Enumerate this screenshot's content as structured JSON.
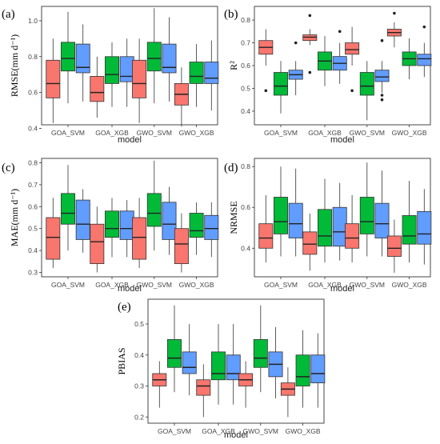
{
  "chart_data": [
    {
      "panel": "(a)",
      "type": "boxplot",
      "ylabel": "RMSE(mm d⁻¹)",
      "xlabel": "model",
      "ylim": [
        0.42,
        1.08
      ],
      "yticks": [
        0.4,
        0.6,
        0.8,
        1.0
      ],
      "ytick_labels": [
        "0.4",
        "0.6",
        "0.8",
        "1.0"
      ],
      "categories": [
        "GOA_SVM",
        "GOA_XGB",
        "GWO_SVM",
        "GWO_XGB"
      ],
      "groups": [
        [
          {
            "color": "#F8766D",
            "min": 0.43,
            "q1": 0.57,
            "med": 0.65,
            "q3": 0.78,
            "max": 0.9,
            "outliers": []
          },
          {
            "color": "#00BA38",
            "min": 0.54,
            "q1": 0.72,
            "med": 0.79,
            "q3": 0.88,
            "max": 1.05,
            "outliers": []
          },
          {
            "color": "#619CFF",
            "min": 0.55,
            "q1": 0.71,
            "med": 0.74,
            "q3": 0.87,
            "max": 0.98,
            "outliers": []
          }
        ],
        [
          {
            "color": "#F8766D",
            "min": 0.46,
            "q1": 0.55,
            "med": 0.6,
            "q3": 0.69,
            "max": 0.8,
            "outliers": []
          },
          {
            "color": "#00BA38",
            "min": 0.52,
            "q1": 0.65,
            "med": 0.7,
            "q3": 0.8,
            "max": 0.88,
            "outliers": []
          },
          {
            "color": "#619CFF",
            "min": 0.52,
            "q1": 0.66,
            "med": 0.69,
            "q3": 0.8,
            "max": 0.9,
            "outliers": []
          }
        ],
        [
          {
            "color": "#F8766D",
            "min": 0.43,
            "q1": 0.57,
            "med": 0.65,
            "q3": 0.78,
            "max": 0.9,
            "outliers": []
          },
          {
            "color": "#00BA38",
            "min": 0.54,
            "q1": 0.72,
            "med": 0.79,
            "q3": 0.88,
            "max": 1.07,
            "outliers": []
          },
          {
            "color": "#619CFF",
            "min": 0.55,
            "q1": 0.71,
            "med": 0.74,
            "q3": 0.87,
            "max": 1.02,
            "outliers": []
          }
        ],
        [
          {
            "color": "#F8766D",
            "min": 0.41,
            "q1": 0.53,
            "med": 0.59,
            "q3": 0.65,
            "max": 0.74,
            "outliers": []
          },
          {
            "color": "#00BA38",
            "min": 0.52,
            "q1": 0.65,
            "med": 0.69,
            "q3": 0.77,
            "max": 0.87,
            "outliers": []
          },
          {
            "color": "#619CFF",
            "min": 0.5,
            "q1": 0.65,
            "med": 0.68,
            "q3": 0.77,
            "max": 0.89,
            "outliers": []
          }
        ]
      ]
    },
    {
      "panel": "(b)",
      "type": "boxplot",
      "ylabel": "R²",
      "xlabel": "model",
      "ylim": [
        0.34,
        0.86
      ],
      "yticks": [
        0.4,
        0.5,
        0.6,
        0.7,
        0.8
      ],
      "ytick_labels": [
        "0.4",
        "0.5",
        "0.6",
        "0.7",
        "0.8"
      ],
      "categories": [
        "GOA_SVM",
        "GOA_XGB",
        "GWO_SVM",
        "GWO_XGB"
      ],
      "groups": [
        [
          {
            "color": "#F8766D",
            "min": 0.6,
            "q1": 0.65,
            "med": 0.68,
            "q3": 0.71,
            "max": 0.76,
            "outliers": [
              0.49
            ]
          },
          {
            "color": "#00BA38",
            "min": 0.39,
            "q1": 0.47,
            "med": 0.51,
            "q3": 0.57,
            "max": 0.62,
            "outliers": []
          },
          {
            "color": "#619CFF",
            "min": 0.47,
            "q1": 0.54,
            "med": 0.56,
            "q3": 0.58,
            "max": 0.62,
            "outliers": [
              0.7
            ]
          }
        ],
        [
          {
            "color": "#F8766D",
            "min": 0.69,
            "q1": 0.71,
            "med": 0.725,
            "q3": 0.735,
            "max": 0.76,
            "outliers": [
              0.82,
              0.57
            ]
          },
          {
            "color": "#00BA38",
            "min": 0.51,
            "q1": 0.58,
            "med": 0.62,
            "q3": 0.66,
            "max": 0.73,
            "outliers": []
          },
          {
            "color": "#619CFF",
            "min": 0.52,
            "q1": 0.58,
            "med": 0.61,
            "q3": 0.64,
            "max": 0.7,
            "outliers": [
              0.75
            ]
          }
        ],
        [
          {
            "color": "#F8766D",
            "min": 0.6,
            "q1": 0.65,
            "med": 0.67,
            "q3": 0.7,
            "max": 0.77,
            "outliers": [
              0.49
            ]
          },
          {
            "color": "#00BA38",
            "min": 0.36,
            "q1": 0.47,
            "med": 0.51,
            "q3": 0.57,
            "max": 0.62,
            "outliers": []
          },
          {
            "color": "#619CFF",
            "min": 0.48,
            "q1": 0.53,
            "med": 0.55,
            "q3": 0.58,
            "max": 0.62,
            "outliers": [
              0.71,
              0.47,
              0.45
            ]
          }
        ],
        [
          {
            "color": "#F8766D",
            "min": 0.68,
            "q1": 0.73,
            "med": 0.745,
            "q3": 0.76,
            "max": 0.79,
            "outliers": [
              0.83
            ]
          },
          {
            "color": "#00BA38",
            "min": 0.54,
            "q1": 0.6,
            "med": 0.63,
            "q3": 0.66,
            "max": 0.72,
            "outliers": []
          },
          {
            "color": "#619CFF",
            "min": 0.55,
            "q1": 0.6,
            "med": 0.63,
            "q3": 0.65,
            "max": 0.7,
            "outliers": [
              0.77
            ]
          }
        ]
      ]
    },
    {
      "panel": "(c)",
      "type": "boxplot",
      "ylabel": "MAE(mm d⁻¹)",
      "xlabel": "model",
      "ylim": [
        0.28,
        0.82
      ],
      "yticks": [
        0.3,
        0.4,
        0.5,
        0.6,
        0.7,
        0.8
      ],
      "ytick_labels": [
        "0.3",
        "0.4",
        "0.5",
        "0.6",
        "0.7",
        "0.8"
      ],
      "categories": [
        "GOA_SVM",
        "GOA_XGB",
        "GWO_SVM",
        "GWO_XGB"
      ],
      "groups": [
        [
          {
            "color": "#F8766D",
            "min": 0.32,
            "q1": 0.36,
            "med": 0.46,
            "q3": 0.55,
            "max": 0.64,
            "outliers": []
          },
          {
            "color": "#00BA38",
            "min": 0.4,
            "q1": 0.52,
            "med": 0.57,
            "q3": 0.66,
            "max": 0.79,
            "outliers": []
          },
          {
            "color": "#619CFF",
            "min": 0.39,
            "q1": 0.45,
            "med": 0.52,
            "q3": 0.63,
            "max": 0.68,
            "outliers": []
          }
        ],
        [
          {
            "color": "#F8766D",
            "min": 0.3,
            "q1": 0.34,
            "med": 0.44,
            "q3": 0.52,
            "max": 0.6,
            "outliers": []
          },
          {
            "color": "#00BA38",
            "min": 0.37,
            "q1": 0.46,
            "med": 0.5,
            "q3": 0.58,
            "max": 0.64,
            "outliers": []
          },
          {
            "color": "#619CFF",
            "min": 0.37,
            "q1": 0.45,
            "med": 0.5,
            "q3": 0.58,
            "max": 0.63,
            "outliers": []
          }
        ],
        [
          {
            "color": "#F8766D",
            "min": 0.32,
            "q1": 0.36,
            "med": 0.46,
            "q3": 0.55,
            "max": 0.64,
            "outliers": []
          },
          {
            "color": "#00BA38",
            "min": 0.4,
            "q1": 0.51,
            "med": 0.57,
            "q3": 0.66,
            "max": 0.81,
            "outliers": []
          },
          {
            "color": "#619CFF",
            "min": 0.38,
            "q1": 0.45,
            "med": 0.52,
            "q3": 0.62,
            "max": 0.69,
            "outliers": []
          }
        ],
        [
          {
            "color": "#F8766D",
            "min": 0.3,
            "q1": 0.34,
            "med": 0.43,
            "q3": 0.5,
            "max": 0.57,
            "outliers": []
          },
          {
            "color": "#00BA38",
            "min": 0.38,
            "q1": 0.46,
            "med": 0.49,
            "q3": 0.57,
            "max": 0.62,
            "outliers": []
          },
          {
            "color": "#619CFF",
            "min": 0.37,
            "q1": 0.45,
            "med": 0.5,
            "q3": 0.56,
            "max": 0.62,
            "outliers": []
          }
        ]
      ]
    },
    {
      "panel": "(d)",
      "type": "boxplot",
      "ylabel": "NRMSE",
      "xlabel": "model",
      "ylim": [
        0.26,
        0.84
      ],
      "yticks": [
        0.4,
        0.6,
        0.8
      ],
      "ytick_labels": [
        "0.4",
        "0.6",
        "0.8"
      ],
      "categories": [
        "GOA_SVM",
        "GOA_XGB",
        "GWO_SVM",
        "GWO_XGB"
      ],
      "groups": [
        [
          {
            "color": "#F8766D",
            "min": 0.33,
            "q1": 0.4,
            "med": 0.45,
            "q3": 0.52,
            "max": 0.66,
            "outliers": []
          },
          {
            "color": "#00BA38",
            "min": 0.36,
            "q1": 0.47,
            "med": 0.53,
            "q3": 0.65,
            "max": 0.8,
            "outliers": []
          },
          {
            "color": "#619CFF",
            "min": 0.36,
            "q1": 0.45,
            "med": 0.52,
            "q3": 0.62,
            "max": 0.79,
            "outliers": []
          }
        ],
        [
          {
            "color": "#F8766D",
            "min": 0.29,
            "q1": 0.37,
            "med": 0.42,
            "q3": 0.48,
            "max": 0.57,
            "outliers": []
          },
          {
            "color": "#00BA38",
            "min": 0.33,
            "q1": 0.41,
            "med": 0.46,
            "q3": 0.59,
            "max": 0.74,
            "outliers": []
          },
          {
            "color": "#619CFF",
            "min": 0.34,
            "q1": 0.41,
            "med": 0.48,
            "q3": 0.6,
            "max": 0.72,
            "outliers": []
          }
        ],
        [
          {
            "color": "#F8766D",
            "min": 0.33,
            "q1": 0.4,
            "med": 0.45,
            "q3": 0.52,
            "max": 0.66,
            "outliers": []
          },
          {
            "color": "#00BA38",
            "min": 0.36,
            "q1": 0.47,
            "med": 0.53,
            "q3": 0.65,
            "max": 0.82,
            "outliers": []
          },
          {
            "color": "#619CFF",
            "min": 0.36,
            "q1": 0.45,
            "med": 0.52,
            "q3": 0.62,
            "max": 0.78,
            "outliers": []
          }
        ],
        [
          {
            "color": "#F8766D",
            "min": 0.28,
            "q1": 0.36,
            "med": 0.4,
            "q3": 0.46,
            "max": 0.54,
            "outliers": []
          },
          {
            "color": "#00BA38",
            "min": 0.33,
            "q1": 0.42,
            "med": 0.46,
            "q3": 0.56,
            "max": 0.73,
            "outliers": []
          },
          {
            "color": "#619CFF",
            "min": 0.32,
            "q1": 0.42,
            "med": 0.47,
            "q3": 0.58,
            "max": 0.69,
            "outliers": []
          }
        ]
      ]
    },
    {
      "panel": "(e)",
      "type": "boxplot",
      "ylabel": "PBIAS",
      "xlabel": "model",
      "ylim": [
        0.18,
        0.58
      ],
      "yticks": [
        0.2,
        0.3,
        0.4,
        0.5
      ],
      "ytick_labels": [
        "0.2",
        "0.3",
        "0.4",
        "0.5"
      ],
      "categories": [
        "GOA_SVM",
        "GOA_XGB",
        "GWO_SVM",
        "GWO_XGB"
      ],
      "groups": [
        [
          {
            "color": "#F8766D",
            "min": 0.23,
            "q1": 0.3,
            "med": 0.32,
            "q3": 0.34,
            "max": 0.38,
            "outliers": []
          },
          {
            "color": "#00BA38",
            "min": 0.28,
            "q1": 0.36,
            "med": 0.39,
            "q3": 0.45,
            "max": 0.56,
            "outliers": []
          },
          {
            "color": "#619CFF",
            "min": 0.27,
            "q1": 0.34,
            "med": 0.36,
            "q3": 0.41,
            "max": 0.5,
            "outliers": []
          }
        ],
        [
          {
            "color": "#F8766D",
            "min": 0.2,
            "q1": 0.27,
            "med": 0.3,
            "q3": 0.32,
            "max": 0.37,
            "outliers": []
          },
          {
            "color": "#00BA38",
            "min": 0.24,
            "q1": 0.32,
            "med": 0.34,
            "q3": 0.41,
            "max": 0.5,
            "outliers": []
          },
          {
            "color": "#619CFF",
            "min": 0.24,
            "q1": 0.32,
            "med": 0.34,
            "q3": 0.4,
            "max": 0.5,
            "outliers": []
          }
        ],
        [
          {
            "color": "#F8766D",
            "min": 0.23,
            "q1": 0.3,
            "med": 0.32,
            "q3": 0.34,
            "max": 0.38,
            "outliers": []
          },
          {
            "color": "#00BA38",
            "min": 0.28,
            "q1": 0.36,
            "med": 0.39,
            "q3": 0.45,
            "max": 0.56,
            "outliers": []
          },
          {
            "color": "#619CFF",
            "min": 0.26,
            "q1": 0.33,
            "med": 0.37,
            "q3": 0.41,
            "max": 0.49,
            "outliers": []
          }
        ],
        [
          {
            "color": "#F8766D",
            "min": 0.2,
            "q1": 0.27,
            "med": 0.29,
            "q3": 0.31,
            "max": 0.36,
            "outliers": []
          },
          {
            "color": "#00BA38",
            "min": 0.23,
            "q1": 0.3,
            "med": 0.33,
            "q3": 0.4,
            "max": 0.48,
            "outliers": []
          },
          {
            "color": "#619CFF",
            "min": 0.23,
            "q1": 0.31,
            "med": 0.34,
            "q3": 0.4,
            "max": 0.47,
            "outliers": []
          }
        ]
      ]
    }
  ]
}
